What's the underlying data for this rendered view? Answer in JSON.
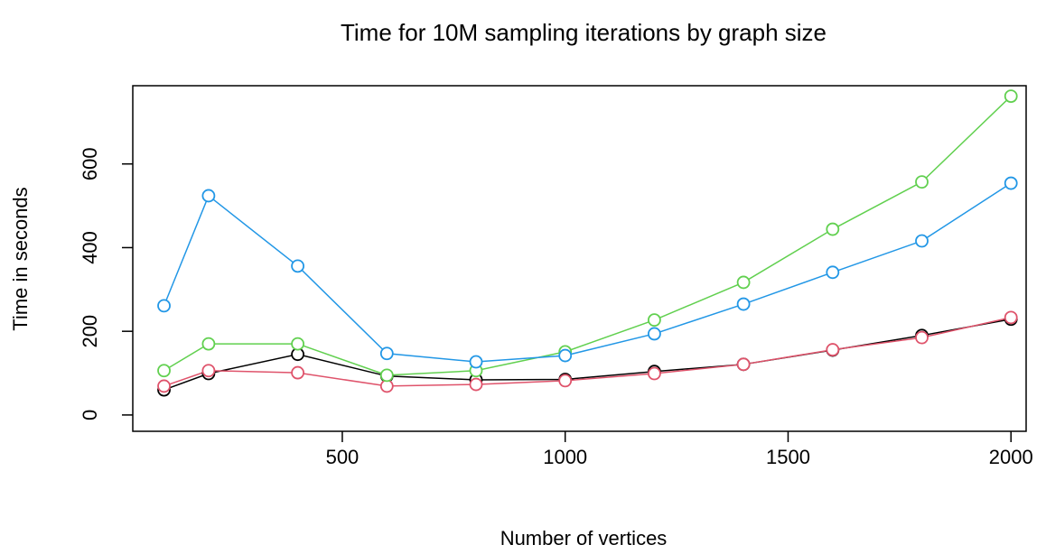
{
  "chart_data": {
    "type": "line",
    "title": "Time for 10M sampling iterations by graph size",
    "x_label": "Number of vertices",
    "y_label": "Time in seconds",
    "x": [
      100,
      200,
      400,
      600,
      800,
      1000,
      1200,
      1400,
      1600,
      1800,
      2000
    ],
    "series": [
      {
        "color": "#000000",
        "values": [
          60,
          99,
          145,
          93,
          84,
          85,
          104,
          121,
          155,
          190,
          229
        ]
      },
      {
        "color": "#DF536B",
        "values": [
          69,
          106,
          101,
          69,
          73,
          82,
          99,
          121,
          156,
          185,
          233
        ]
      },
      {
        "color": "#61D04F",
        "values": [
          106,
          170,
          170,
          95,
          106,
          151,
          227,
          317,
          444,
          557,
          762
        ]
      },
      {
        "color": "#2297E6",
        "values": [
          261,
          524,
          356,
          147,
          127,
          142,
          194,
          265,
          341,
          416,
          554
        ]
      }
    ],
    "xlim": [
      30,
      2034
    ],
    "ylim": [
      -39,
      787
    ],
    "xticks": [
      500,
      1000,
      1500,
      2000
    ],
    "yticks": [
      0,
      200,
      400,
      600
    ]
  }
}
